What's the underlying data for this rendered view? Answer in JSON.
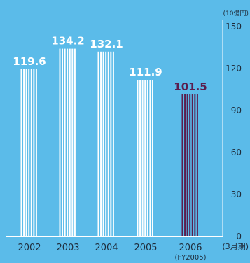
{
  "chart_data": {
    "type": "bar",
    "categories": [
      "2002",
      "2003",
      "2004",
      "2005",
      "2006"
    ],
    "values": [
      119.6,
      134.2,
      132.1,
      111.9,
      101.5
    ],
    "value_labels": [
      "119.6",
      "134.2",
      "132.1",
      "111.9",
      "101.5"
    ],
    "highlight_index": 4,
    "category_note": "(FY2005)",
    "title": "",
    "xlabel": "",
    "ylabel": "",
    "y_unit": "(10億円)",
    "x_unit": "(3月期)",
    "yticks": [
      0,
      30,
      60,
      90,
      120,
      150
    ],
    "ylim": [
      0,
      150
    ],
    "grid": false,
    "legend": "none",
    "colors": {
      "background": "#5bbbe9",
      "bar": "#ffffff",
      "highlight": "#5a1e4e",
      "text": "#ffffff",
      "axis_text": "#1e2b3a"
    }
  }
}
